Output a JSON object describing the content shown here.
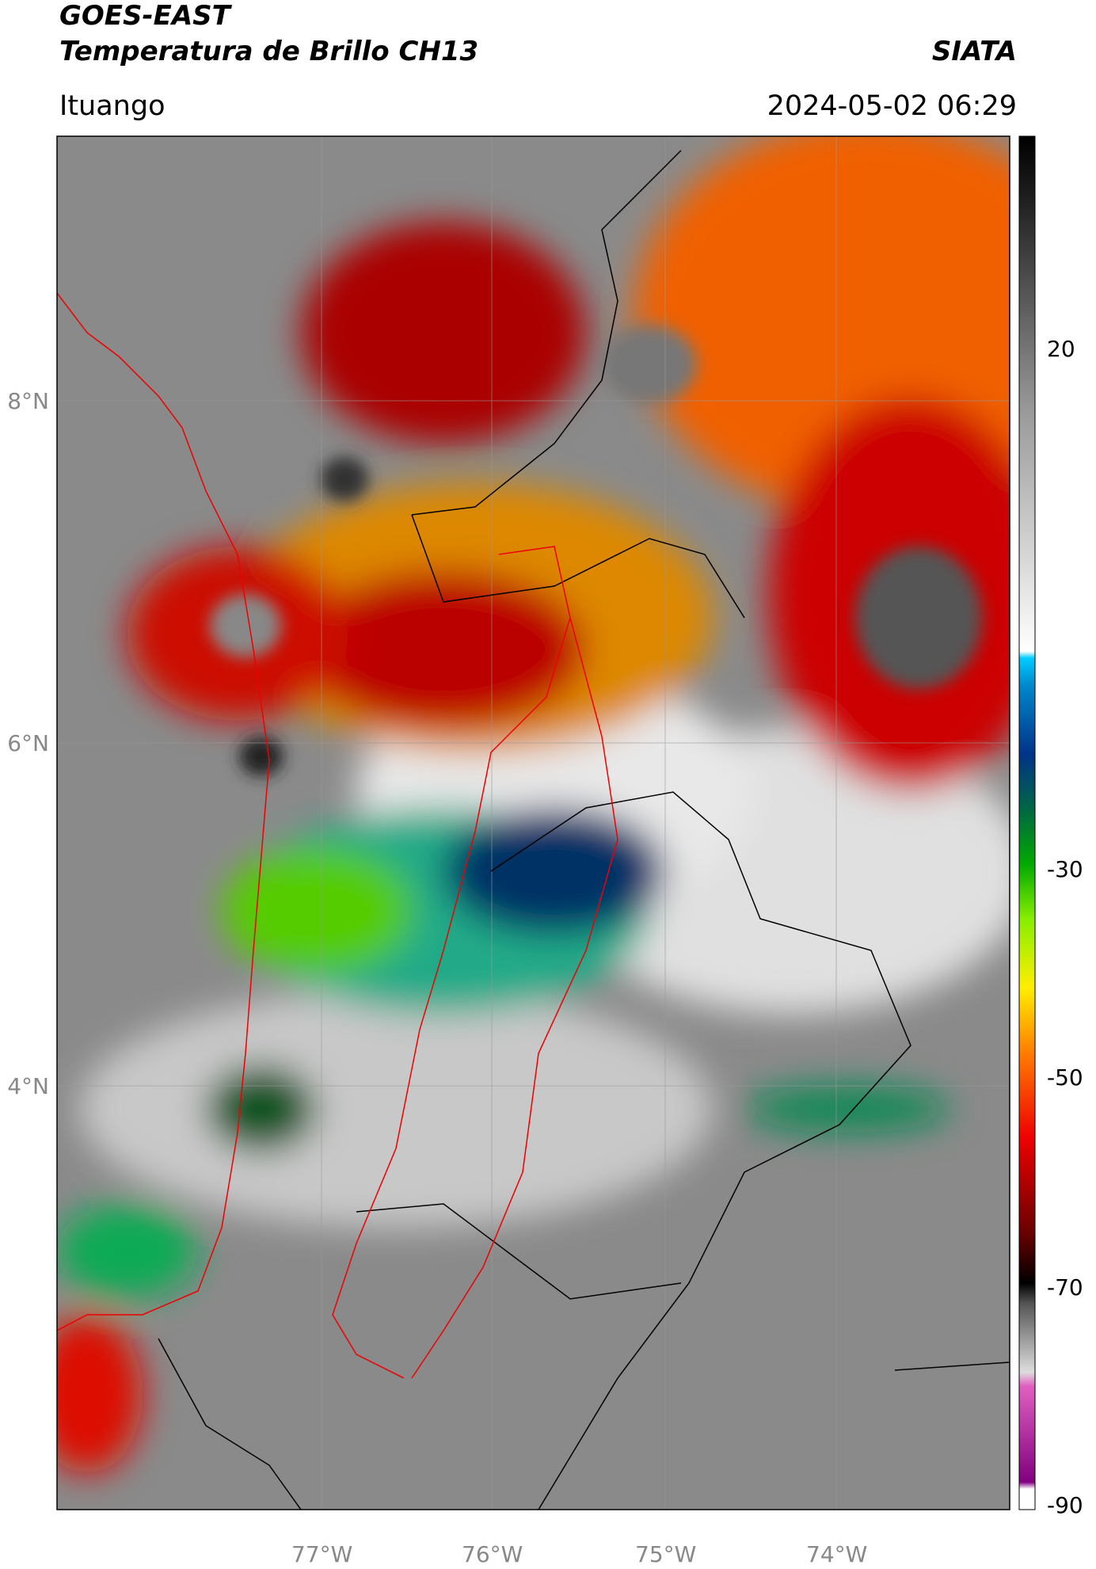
{
  "header": {
    "title": "GOES-EAST",
    "subtitle": "Temperatura de Brillo CH13",
    "source": "SIATA",
    "location": "Ituango",
    "datetime": "2024-05-02 06:29"
  },
  "map": {
    "lat_labels": [
      "8°N",
      "6°N",
      "4°N"
    ],
    "lon_labels": [
      "77°W",
      "76°W",
      "75°W",
      "74°W"
    ]
  },
  "colorbar": {
    "tick_labels": [
      "20",
      "-30",
      "-50",
      "-70",
      "-90"
    ]
  }
}
